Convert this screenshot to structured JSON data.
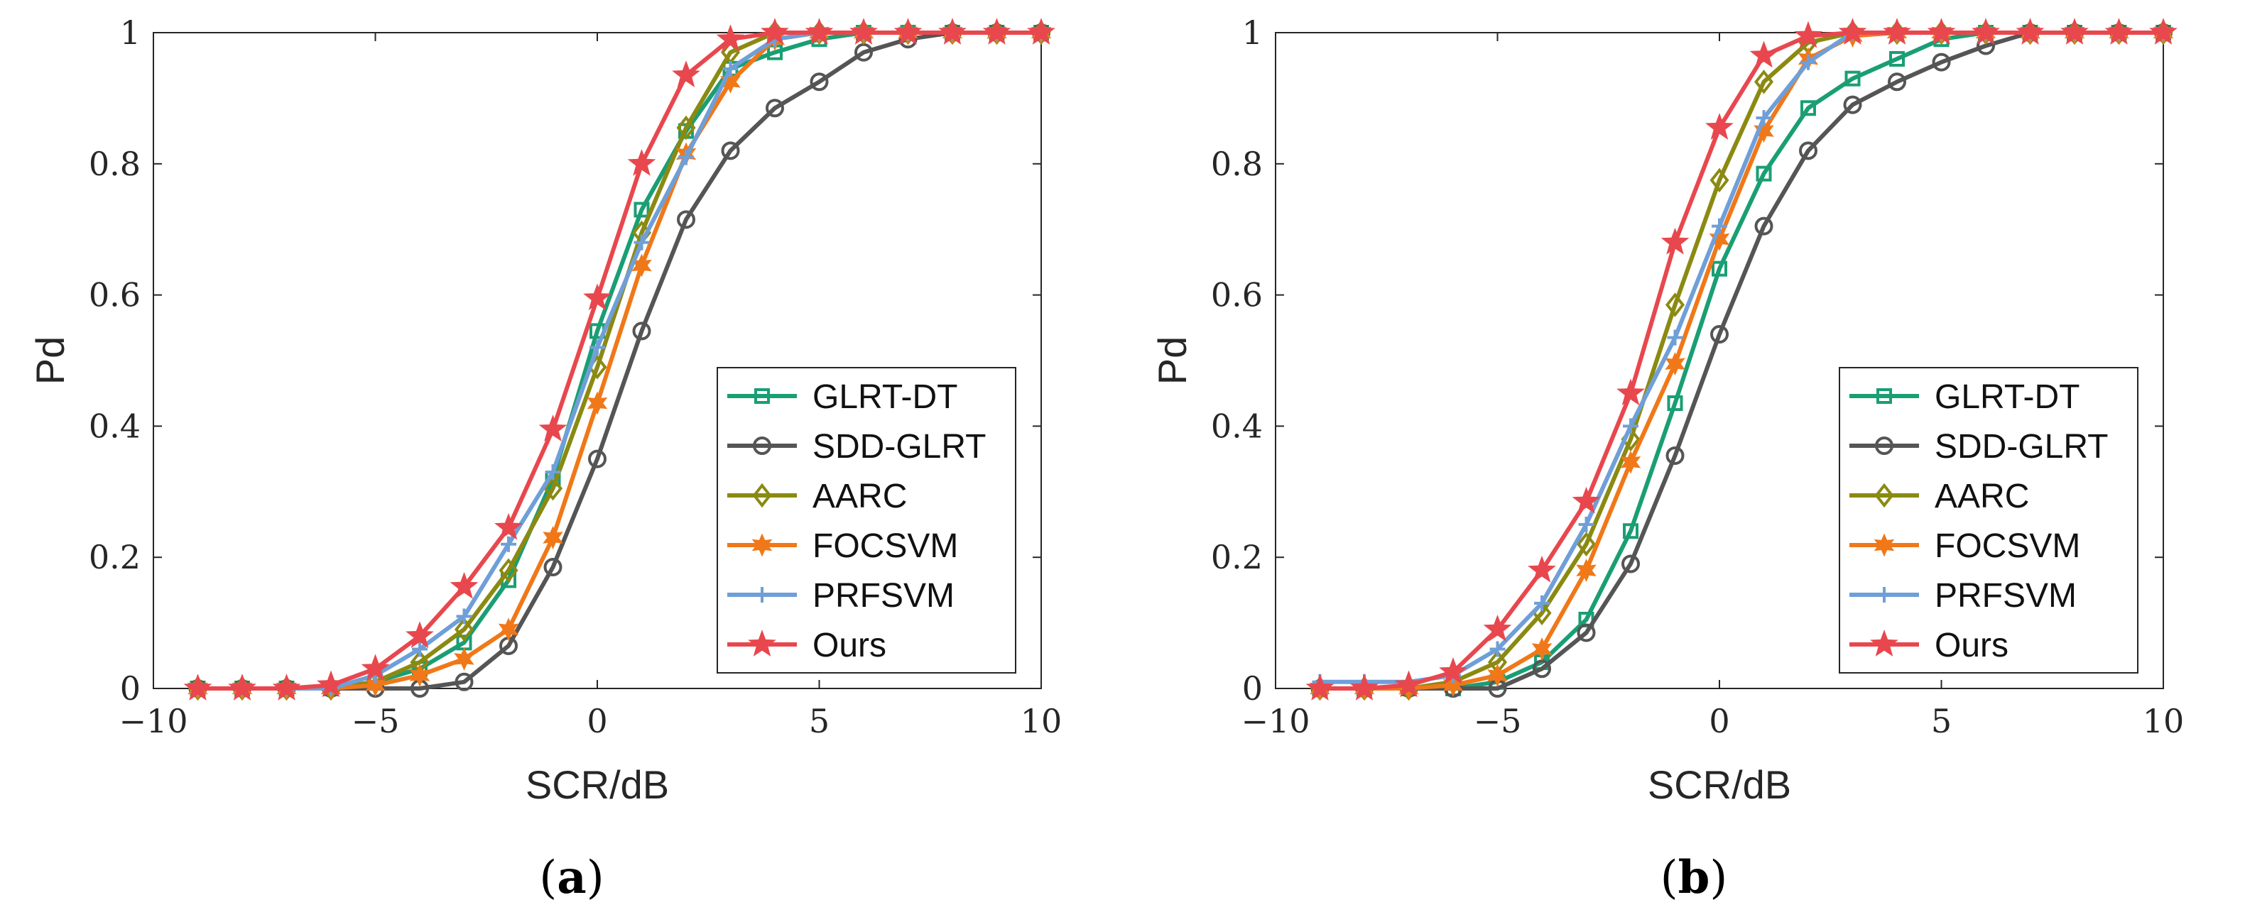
{
  "chart_data": [
    {
      "type": "line",
      "panel": "a",
      "caption_label": "a",
      "title": "",
      "xlabel": "SCR/dB",
      "ylabel": "Pd",
      "xlim": [
        -10,
        10
      ],
      "ylim": [
        0,
        1
      ],
      "xticks": [
        "−10",
        "−5",
        "0",
        "5",
        "10"
      ],
      "yticks": [
        "0",
        "0.2",
        "0.4",
        "0.6",
        "0.8",
        "1"
      ],
      "grid": false,
      "legend_position": "lower-right",
      "x": [
        -9,
        -8,
        -7,
        -6,
        -5,
        -4,
        -3,
        -2,
        -1,
        0,
        1,
        2,
        3,
        4,
        5,
        6,
        7,
        8,
        9,
        10
      ],
      "series": [
        {
          "name": "GLRT-DT",
          "color": "#1a9e74",
          "marker": "square",
          "values": [
            0,
            0,
            0,
            0,
            0.01,
            0.03,
            0.07,
            0.165,
            0.32,
            0.545,
            0.73,
            0.85,
            0.945,
            0.97,
            0.99,
            1,
            1,
            1,
            1,
            1
          ]
        },
        {
          "name": "SDD-GLRT",
          "color": "#555555",
          "marker": "circle",
          "values": [
            0,
            0,
            0,
            0,
            0,
            0,
            0.01,
            0.065,
            0.185,
            0.35,
            0.545,
            0.715,
            0.82,
            0.885,
            0.925,
            0.97,
            0.99,
            1,
            1,
            1
          ]
        },
        {
          "name": "AARC",
          "color": "#8a8a12",
          "marker": "diamond",
          "values": [
            0,
            0,
            0,
            0,
            0.01,
            0.04,
            0.09,
            0.18,
            0.305,
            0.49,
            0.695,
            0.855,
            0.97,
            1,
            1,
            1,
            1,
            1,
            1,
            1
          ]
        },
        {
          "name": "FOCSVM",
          "color": "#f07818",
          "marker": "hexstar",
          "values": [
            0,
            0,
            0,
            0,
            0.005,
            0.02,
            0.045,
            0.09,
            0.23,
            0.435,
            0.645,
            0.815,
            0.925,
            0.99,
            1,
            1,
            1,
            1,
            1,
            1
          ]
        },
        {
          "name": "PRFSVM",
          "color": "#6f9fd8",
          "marker": "plus",
          "values": [
            0,
            0,
            0,
            0,
            0.02,
            0.06,
            0.11,
            0.22,
            0.33,
            0.52,
            0.68,
            0.81,
            0.945,
            0.99,
            1,
            1,
            1,
            1,
            1,
            1
          ]
        },
        {
          "name": "Ours",
          "color": "#e8474e",
          "marker": "star",
          "values": [
            0,
            0,
            0,
            0.005,
            0.03,
            0.08,
            0.155,
            0.245,
            0.395,
            0.595,
            0.8,
            0.935,
            0.99,
            1,
            1,
            1,
            1,
            1,
            1,
            1
          ]
        }
      ]
    },
    {
      "type": "line",
      "panel": "b",
      "caption_label": "b",
      "title": "",
      "xlabel": "SCR/dB",
      "ylabel": "Pd",
      "xlim": [
        -10,
        10
      ],
      "ylim": [
        0,
        1
      ],
      "xticks": [
        "−10",
        "−5",
        "0",
        "5",
        "10"
      ],
      "yticks": [
        "0",
        "0.2",
        "0.4",
        "0.6",
        "0.8",
        "1"
      ],
      "grid": false,
      "legend_position": "lower-right",
      "x": [
        -9,
        -8,
        -7,
        -6,
        -5,
        -4,
        -3,
        -2,
        -1,
        0,
        1,
        2,
        3,
        4,
        5,
        6,
        7,
        8,
        9,
        10
      ],
      "series": [
        {
          "name": "GLRT-DT",
          "color": "#1a9e74",
          "marker": "square",
          "values": [
            0,
            0,
            0,
            0,
            0.01,
            0.04,
            0.105,
            0.24,
            0.435,
            0.64,
            0.785,
            0.885,
            0.93,
            0.96,
            0.99,
            1,
            1,
            1,
            1,
            1
          ]
        },
        {
          "name": "SDD-GLRT",
          "color": "#555555",
          "marker": "circle",
          "values": [
            0,
            0,
            0,
            0,
            0,
            0.03,
            0.085,
            0.19,
            0.355,
            0.54,
            0.705,
            0.82,
            0.89,
            0.925,
            0.955,
            0.98,
            1,
            1,
            1,
            1
          ]
        },
        {
          "name": "AARC",
          "color": "#8a8a12",
          "marker": "diamond",
          "values": [
            0,
            0,
            0,
            0.01,
            0.04,
            0.115,
            0.22,
            0.38,
            0.585,
            0.775,
            0.925,
            0.985,
            1,
            1,
            1,
            1,
            1,
            1,
            1,
            1
          ]
        },
        {
          "name": "FOCSVM",
          "color": "#f07818",
          "marker": "hexstar",
          "values": [
            0,
            0,
            0,
            0.005,
            0.02,
            0.06,
            0.18,
            0.345,
            0.495,
            0.685,
            0.85,
            0.96,
            0.995,
            1,
            1,
            1,
            1,
            1,
            1,
            1
          ]
        },
        {
          "name": "PRFSVM",
          "color": "#6f9fd8",
          "marker": "plus",
          "values": [
            0.01,
            0.01,
            0.01,
            0.02,
            0.06,
            0.13,
            0.25,
            0.4,
            0.535,
            0.705,
            0.87,
            0.955,
            1,
            1,
            1,
            1,
            1,
            1,
            1,
            1
          ]
        },
        {
          "name": "Ours",
          "color": "#e8474e",
          "marker": "star",
          "values": [
            0,
            0,
            0.005,
            0.025,
            0.09,
            0.18,
            0.285,
            0.45,
            0.68,
            0.855,
            0.965,
            0.995,
            1,
            1,
            1,
            1,
            1,
            1,
            1,
            1
          ]
        }
      ]
    }
  ]
}
